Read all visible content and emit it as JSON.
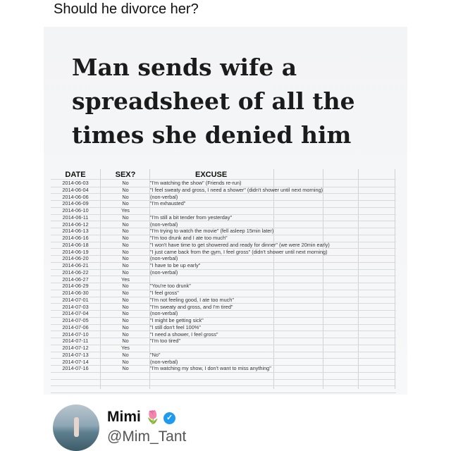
{
  "post": {
    "caption": "Should he divorce her?",
    "headline": "Man sends wife a spreadsheet of all the times she denied him"
  },
  "table": {
    "headers": [
      "DATE",
      "SEX?",
      "EXCUSE"
    ],
    "rows": [
      [
        "2014-06-03",
        "No",
        "\"I'm watching the show\" (Friends re-run)"
      ],
      [
        "2014-06-04",
        "No",
        "\"I feel sweaty and gross, I need a shower\" (didn't shower until next morning)"
      ],
      [
        "2014-06-06",
        "No",
        "(non-verbal)"
      ],
      [
        "2014-06-09",
        "No",
        "\"I'm exhausted\""
      ],
      [
        "2014-06-10",
        "Yes",
        ""
      ],
      [
        "2014-06-11",
        "No",
        "\"I'm still a bit tender from yesterday\""
      ],
      [
        "2014-06-12",
        "No",
        "(non-verbal)"
      ],
      [
        "2014-06-13",
        "No",
        "\"I'm trying to watch the movie\" (fell asleep 15min later)"
      ],
      [
        "2014-06-16",
        "No",
        "\"I'm too drunk and I ate too much\""
      ],
      [
        "2014-06-18",
        "No",
        "\"I won't have time to get showered and ready for dinner\" (we were 20min early)"
      ],
      [
        "2014-06-19",
        "No",
        "\"I just came back from the gym, I feel gross\" (didn't shower until next morning)"
      ],
      [
        "2014-06-20",
        "No",
        "(non-verbal)"
      ],
      [
        "2014-06-21",
        "No",
        "\"I have to be up early\""
      ],
      [
        "2014-06-22",
        "No",
        "(non-verbal)"
      ],
      [
        "2014-06-27",
        "Yes",
        ""
      ],
      [
        "2014-06-29",
        "No",
        "\"You're too drunk\""
      ],
      [
        "2014-06-30",
        "No",
        "\"I feel gross\""
      ],
      [
        "2014-07-01",
        "No",
        "\"I'm not feeling good, I ate too much\""
      ],
      [
        "2014-07-03",
        "No",
        "\"I'm sweaty and gross, and I'm tired\""
      ],
      [
        "2014-07-04",
        "No",
        "(non-verbal)"
      ],
      [
        "2014-07-05",
        "No",
        "\"I might be getting sick\""
      ],
      [
        "2014-07-06",
        "No",
        "\"I still don't feel 100%\""
      ],
      [
        "2014-07-10",
        "No",
        "\"I need a shower, I feel gross\""
      ],
      [
        "2014-07-11",
        "No",
        "\"I'm too tired\""
      ],
      [
        "2014-07-12",
        "Yes",
        ""
      ],
      [
        "2014-07-13",
        "No",
        "\"No\""
      ],
      [
        "2014-07-14",
        "No",
        "(non-verbal)"
      ],
      [
        "2014-07-16",
        "No",
        "\"I'm watching my show, I don't want to miss anything\""
      ]
    ]
  },
  "author": {
    "name": "Mimi",
    "name_emoji": "🌷",
    "verified_icon": "verified-badge-icon",
    "handle": "@Mim_Tant",
    "badge_color": "#1d9bf0"
  }
}
